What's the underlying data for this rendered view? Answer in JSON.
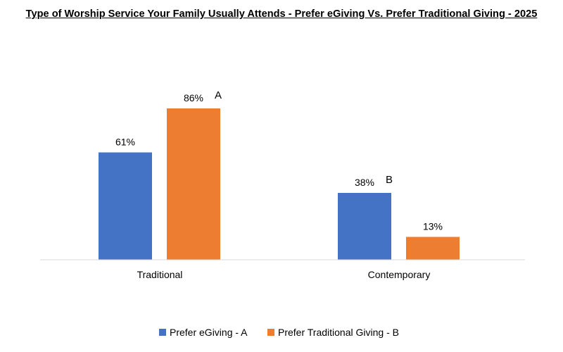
{
  "chart_data": {
    "type": "bar",
    "title": "Type of Worship Service Your Family Usually Attends - Prefer eGiving Vs. Prefer Traditional Giving  - 2025",
    "categories": [
      "Traditional",
      "Contemporary"
    ],
    "series": [
      {
        "name": "Prefer eGiving - A",
        "values": [
          61,
          38
        ],
        "labels": [
          "61%",
          "38%"
        ],
        "color": "#4472C4",
        "annotations": [
          "",
          "B"
        ]
      },
      {
        "name": "Prefer Traditional Giving - B",
        "values": [
          86,
          13
        ],
        "labels": [
          "86%",
          "13%"
        ],
        "color": "#ED7D31",
        "annotations": [
          "A",
          ""
        ]
      }
    ],
    "ylim": [
      0,
      100
    ],
    "grid": false,
    "legend_position": "bottom"
  }
}
